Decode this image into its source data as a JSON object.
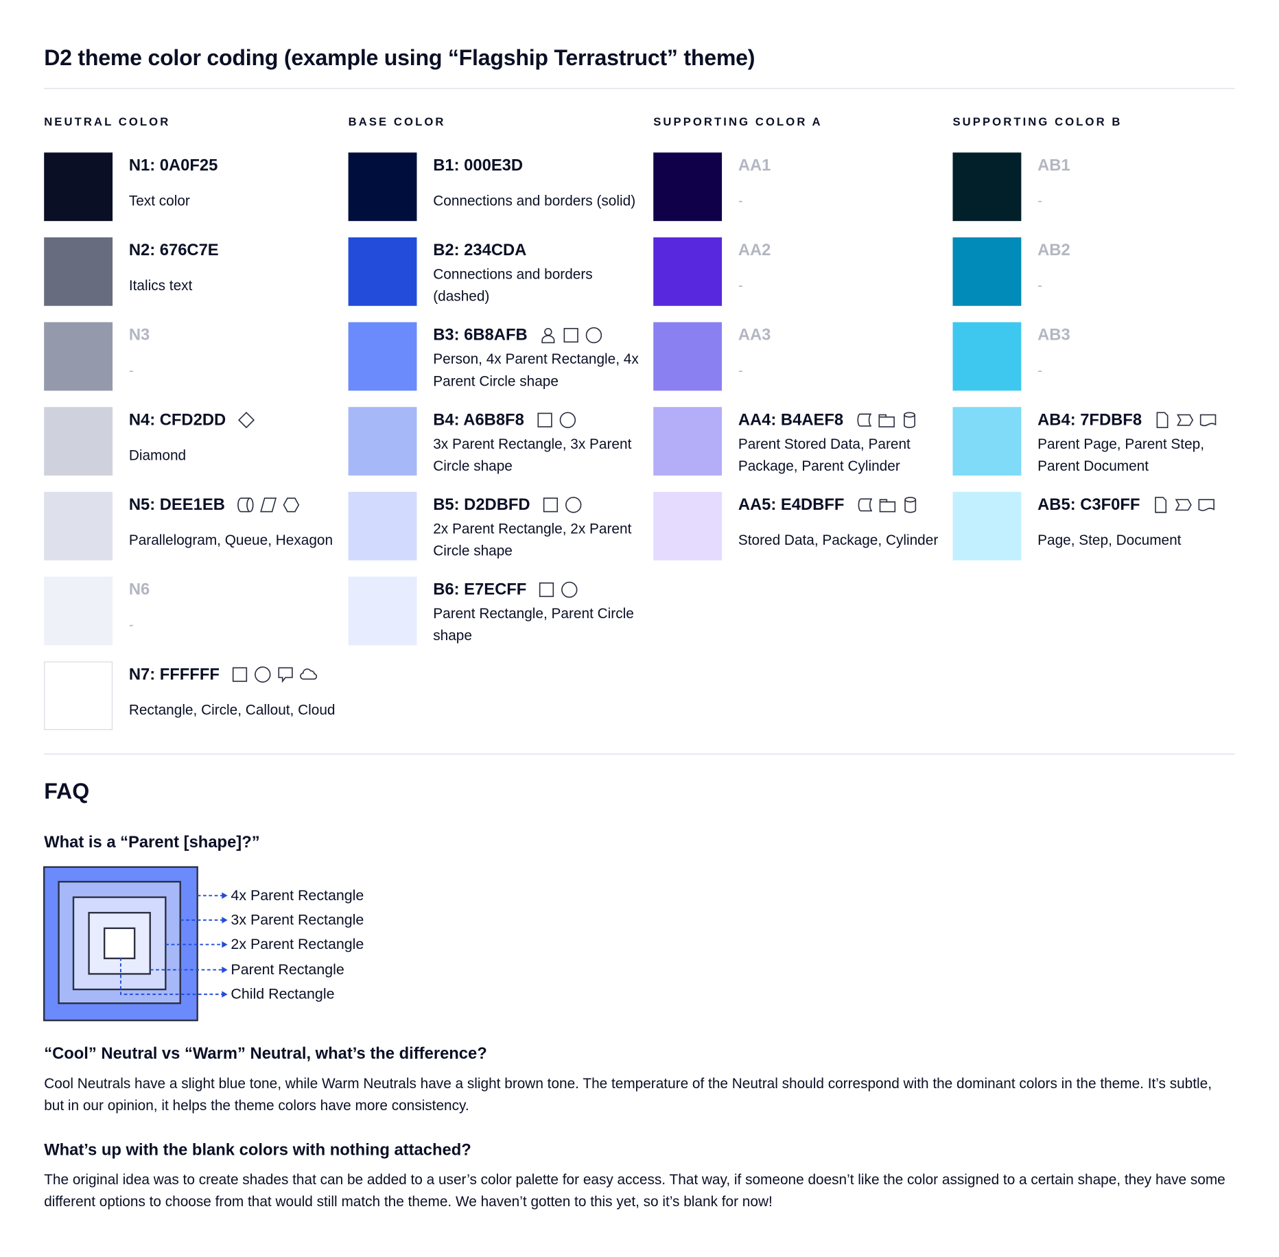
{
  "title": "D2 theme color coding (example using “Flagship Terrastruct” theme)",
  "columns": [
    {
      "heading": "Neutral color",
      "items": [
        {
          "label": "N1: 0A0F25",
          "color": "#0A0F25",
          "desc": "Text color",
          "icons": []
        },
        {
          "label": "N2: 676C7E",
          "color": "#676C7E",
          "desc": "Italics text",
          "icons": []
        },
        {
          "label": "N3",
          "color": "#9499AB",
          "desc": "-",
          "icons": [],
          "dim": true
        },
        {
          "label": "N4: CFD2DD",
          "color": "#CFD2DD",
          "desc": "Diamond",
          "icons": [
            "diamond"
          ]
        },
        {
          "label": "N5: DEE1EB",
          "color": "#DEE1EB",
          "desc": "Parallelogram, Queue, Hexagon",
          "icons": [
            "queue",
            "parallelogram",
            "hexagon"
          ]
        },
        {
          "label": "N6",
          "color": "#EEF1F8",
          "desc": "-",
          "icons": [],
          "dim": true
        },
        {
          "label": "N7: FFFFFF",
          "color": "#FFFFFF",
          "desc": "Rectangle, Circle, Callout, Cloud",
          "icons": [
            "rectangle",
            "circle",
            "callout",
            "cloud"
          ]
        }
      ]
    },
    {
      "heading": "Base color",
      "items": [
        {
          "label": "B1: 000E3D",
          "color": "#000E3D",
          "desc": "Connections and borders (solid)",
          "icons": []
        },
        {
          "label": "B2: 234CDA",
          "color": "#234CDA",
          "desc": "Connections and borders (dashed)",
          "icons": []
        },
        {
          "label": "B3: 6B8AFB",
          "color": "#6B8AFB",
          "desc": "Person, 4x Parent Rectangle, 4x Parent Circle shape",
          "icons": [
            "person",
            "rectangle",
            "circle"
          ]
        },
        {
          "label": "B4: A6B8F8",
          "color": "#A6B8F8",
          "desc": "3x Parent Rectangle, 3x Parent Circle shape",
          "icons": [
            "rectangle",
            "circle"
          ]
        },
        {
          "label": "B5: D2DBFD",
          "color": "#D2DBFD",
          "desc": "2x Parent Rectangle, 2x Parent Circle shape",
          "icons": [
            "rectangle",
            "circle"
          ]
        },
        {
          "label": "B6: E7ECFF",
          "color": "#E7ECFF",
          "desc": "Parent Rectangle, Parent Circle shape",
          "icons": [
            "rectangle",
            "circle"
          ]
        }
      ]
    },
    {
      "heading": "Supporting color A",
      "items": [
        {
          "label": "AA1",
          "color": "#10004A",
          "desc": "-",
          "icons": [],
          "dim": true
        },
        {
          "label": "AA2",
          "color": "#5828DE",
          "desc": "-",
          "icons": [],
          "dim": true
        },
        {
          "label": "AA3",
          "color": "#8B80F2",
          "desc": "-",
          "icons": [],
          "dim": true
        },
        {
          "label": "AA4: B4AEF8",
          "color": "#B4AEF8",
          "desc": "Parent Stored Data, Parent Package,  Parent Cylinder",
          "icons": [
            "stored-data",
            "package",
            "cylinder"
          ]
        },
        {
          "label": "AA5: E4DBFF",
          "color": "#E4DBFF",
          "desc": "Stored Data, Package, Cylinder",
          "icons": [
            "stored-data",
            "package",
            "cylinder"
          ]
        }
      ]
    },
    {
      "heading": "Supporting color B",
      "items": [
        {
          "label": "AB1",
          "color": "#01202A",
          "desc": "-",
          "icons": [],
          "dim": true
        },
        {
          "label": "AB2",
          "color": "#008BB8",
          "desc": "-",
          "icons": [],
          "dim": true
        },
        {
          "label": "AB3",
          "color": "#3FC8EF",
          "desc": "-",
          "icons": [],
          "dim": true
        },
        {
          "label": "AB4: 7FDBF8",
          "color": "#7FDBF8",
          "desc": "Parent Page, Parent Step, Parent Document",
          "icons": [
            "page",
            "step",
            "document"
          ]
        },
        {
          "label": "AB5: C3F0FF",
          "color": "#C3F0FF",
          "desc": "Page, Step, Document",
          "icons": [
            "page",
            "step",
            "document"
          ]
        }
      ]
    }
  ],
  "faq": {
    "heading": "FAQ",
    "q1": "What is a “Parent [shape]?”",
    "diagram_labels": [
      "4x Parent Rectangle",
      "3x Parent Rectangle",
      "2x Parent Rectangle",
      "Parent Rectangle",
      "Child Rectangle"
    ],
    "diagram_colors": [
      "#6B8AFB",
      "#A6B8F8",
      "#D2DBFD",
      "#E7ECFF",
      "#FFFFFF"
    ],
    "connector_color": "#234CDA",
    "q2": "“Cool” Neutral vs “Warm” Neutral, what’s the difference?",
    "a2": "Cool Neutrals have a slight blue tone, while Warm Neutrals have a slight brown tone. The temperature of the Neutral should correspond with the dominant colors in the theme. It’s subtle, but in our opinion, it helps the theme colors have more consistency.",
    "q3": "What’s up with the blank colors with nothing attached?",
    "a3": "The original idea was to create shades that can be added to a user’s color palette for easy access. That way, if someone doesn’t like the color assigned to a certain shape, they have some different options to choose from that would still match the theme. We haven’t gotten to this yet, so it’s blank for now!"
  }
}
